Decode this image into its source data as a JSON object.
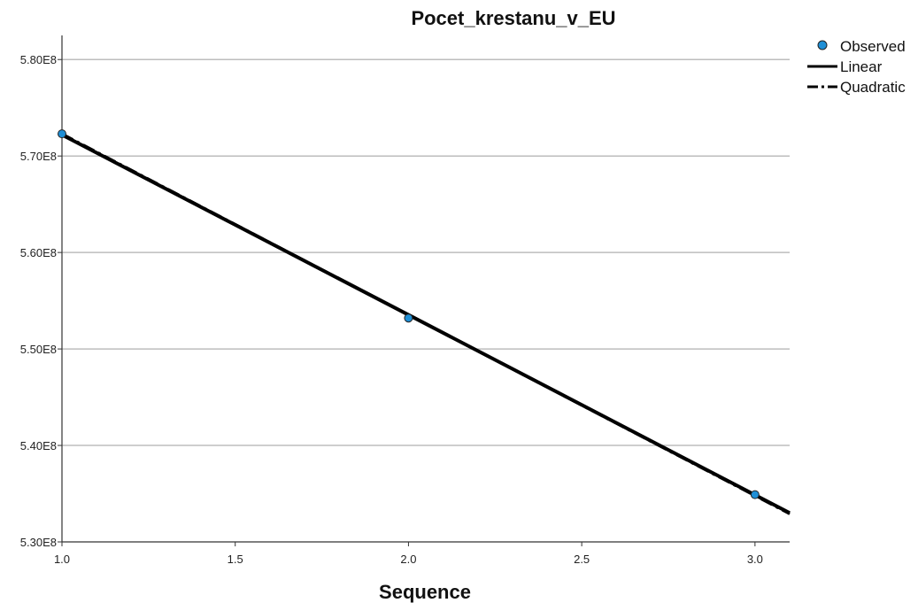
{
  "chart_data": {
    "type": "scatter",
    "title": "Pocet_krestanu_v_EU",
    "xlabel": "Sequence",
    "ylabel": "",
    "xlim": [
      1.0,
      3.1
    ],
    "ylim": [
      530000000,
      582500000
    ],
    "x_ticks": [
      1.0,
      1.5,
      2.0,
      2.5,
      3.0
    ],
    "x_tick_labels": [
      "1.0",
      "1.5",
      "2.0",
      "2.5",
      "3.0"
    ],
    "y_ticks": [
      530000000,
      540000000,
      550000000,
      560000000,
      570000000,
      580000000
    ],
    "y_tick_labels": [
      "5.30E8",
      "5.40E8",
      "5.50E8",
      "5.60E8",
      "5.70E8",
      "5.80E8"
    ],
    "grid": "horizontal",
    "legend_position": "top-right",
    "series": [
      {
        "name": "Observed",
        "kind": "points",
        "color": "#1f8fd6",
        "x": [
          1.0,
          2.0,
          3.0
        ],
        "y": [
          572300000,
          553200000,
          534900000
        ]
      },
      {
        "name": "Linear",
        "kind": "line",
        "style": "solid",
        "color": "#000000",
        "x": [
          1.0,
          3.1
        ],
        "y": [
          572200000,
          533000000
        ]
      },
      {
        "name": "Quadratic",
        "kind": "line",
        "style": "dashdot",
        "color": "#000000",
        "x": [
          1.0,
          3.1
        ],
        "y": [
          572300000,
          532900000
        ]
      }
    ]
  }
}
